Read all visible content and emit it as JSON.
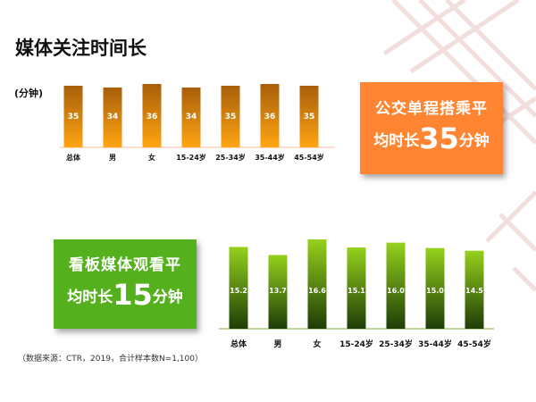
{
  "slide": {
    "title": "媒体关注时间长",
    "unit_label": "(分钟)",
    "source_note": "（数据来源：CTR，2019，合计样本数N=1,100）"
  },
  "callouts": {
    "bus": {
      "line1": "公交单程搭乘平",
      "line2_prefix": "均时长",
      "number": "35",
      "line2_suffix": "分钟",
      "color": "#ff8533"
    },
    "board": {
      "line1": "看板媒体观看平",
      "line2_prefix": "均时长",
      "number": "15",
      "line2_suffix": "分钟",
      "color": "#55b01e"
    }
  },
  "chart_data": [
    {
      "type": "bar",
      "categories": [
        "总体",
        "男",
        "女",
        "15-24岁",
        "25-34岁",
        "35-44岁",
        "45-54岁"
      ],
      "values": [
        35,
        34,
        36,
        34,
        35,
        36,
        35
      ],
      "ylabel": "(分钟)",
      "ylim": [
        0,
        36
      ],
      "grid": false,
      "gradient_top": "#a85f0a",
      "gradient_bottom": "#ffa511"
    },
    {
      "type": "bar",
      "categories": [
        "总体",
        "男",
        "女",
        "15-24岁",
        "25-34岁",
        "35-44岁",
        "45-54岁"
      ],
      "values": [
        15.2,
        13.7,
        16.6,
        15.1,
        16.0,
        15.0,
        14.5
      ],
      "ylim": [
        0,
        16.6
      ],
      "grid": false,
      "gradient_top": "#95d11c",
      "gradient_bottom": "#1e3d07"
    }
  ]
}
